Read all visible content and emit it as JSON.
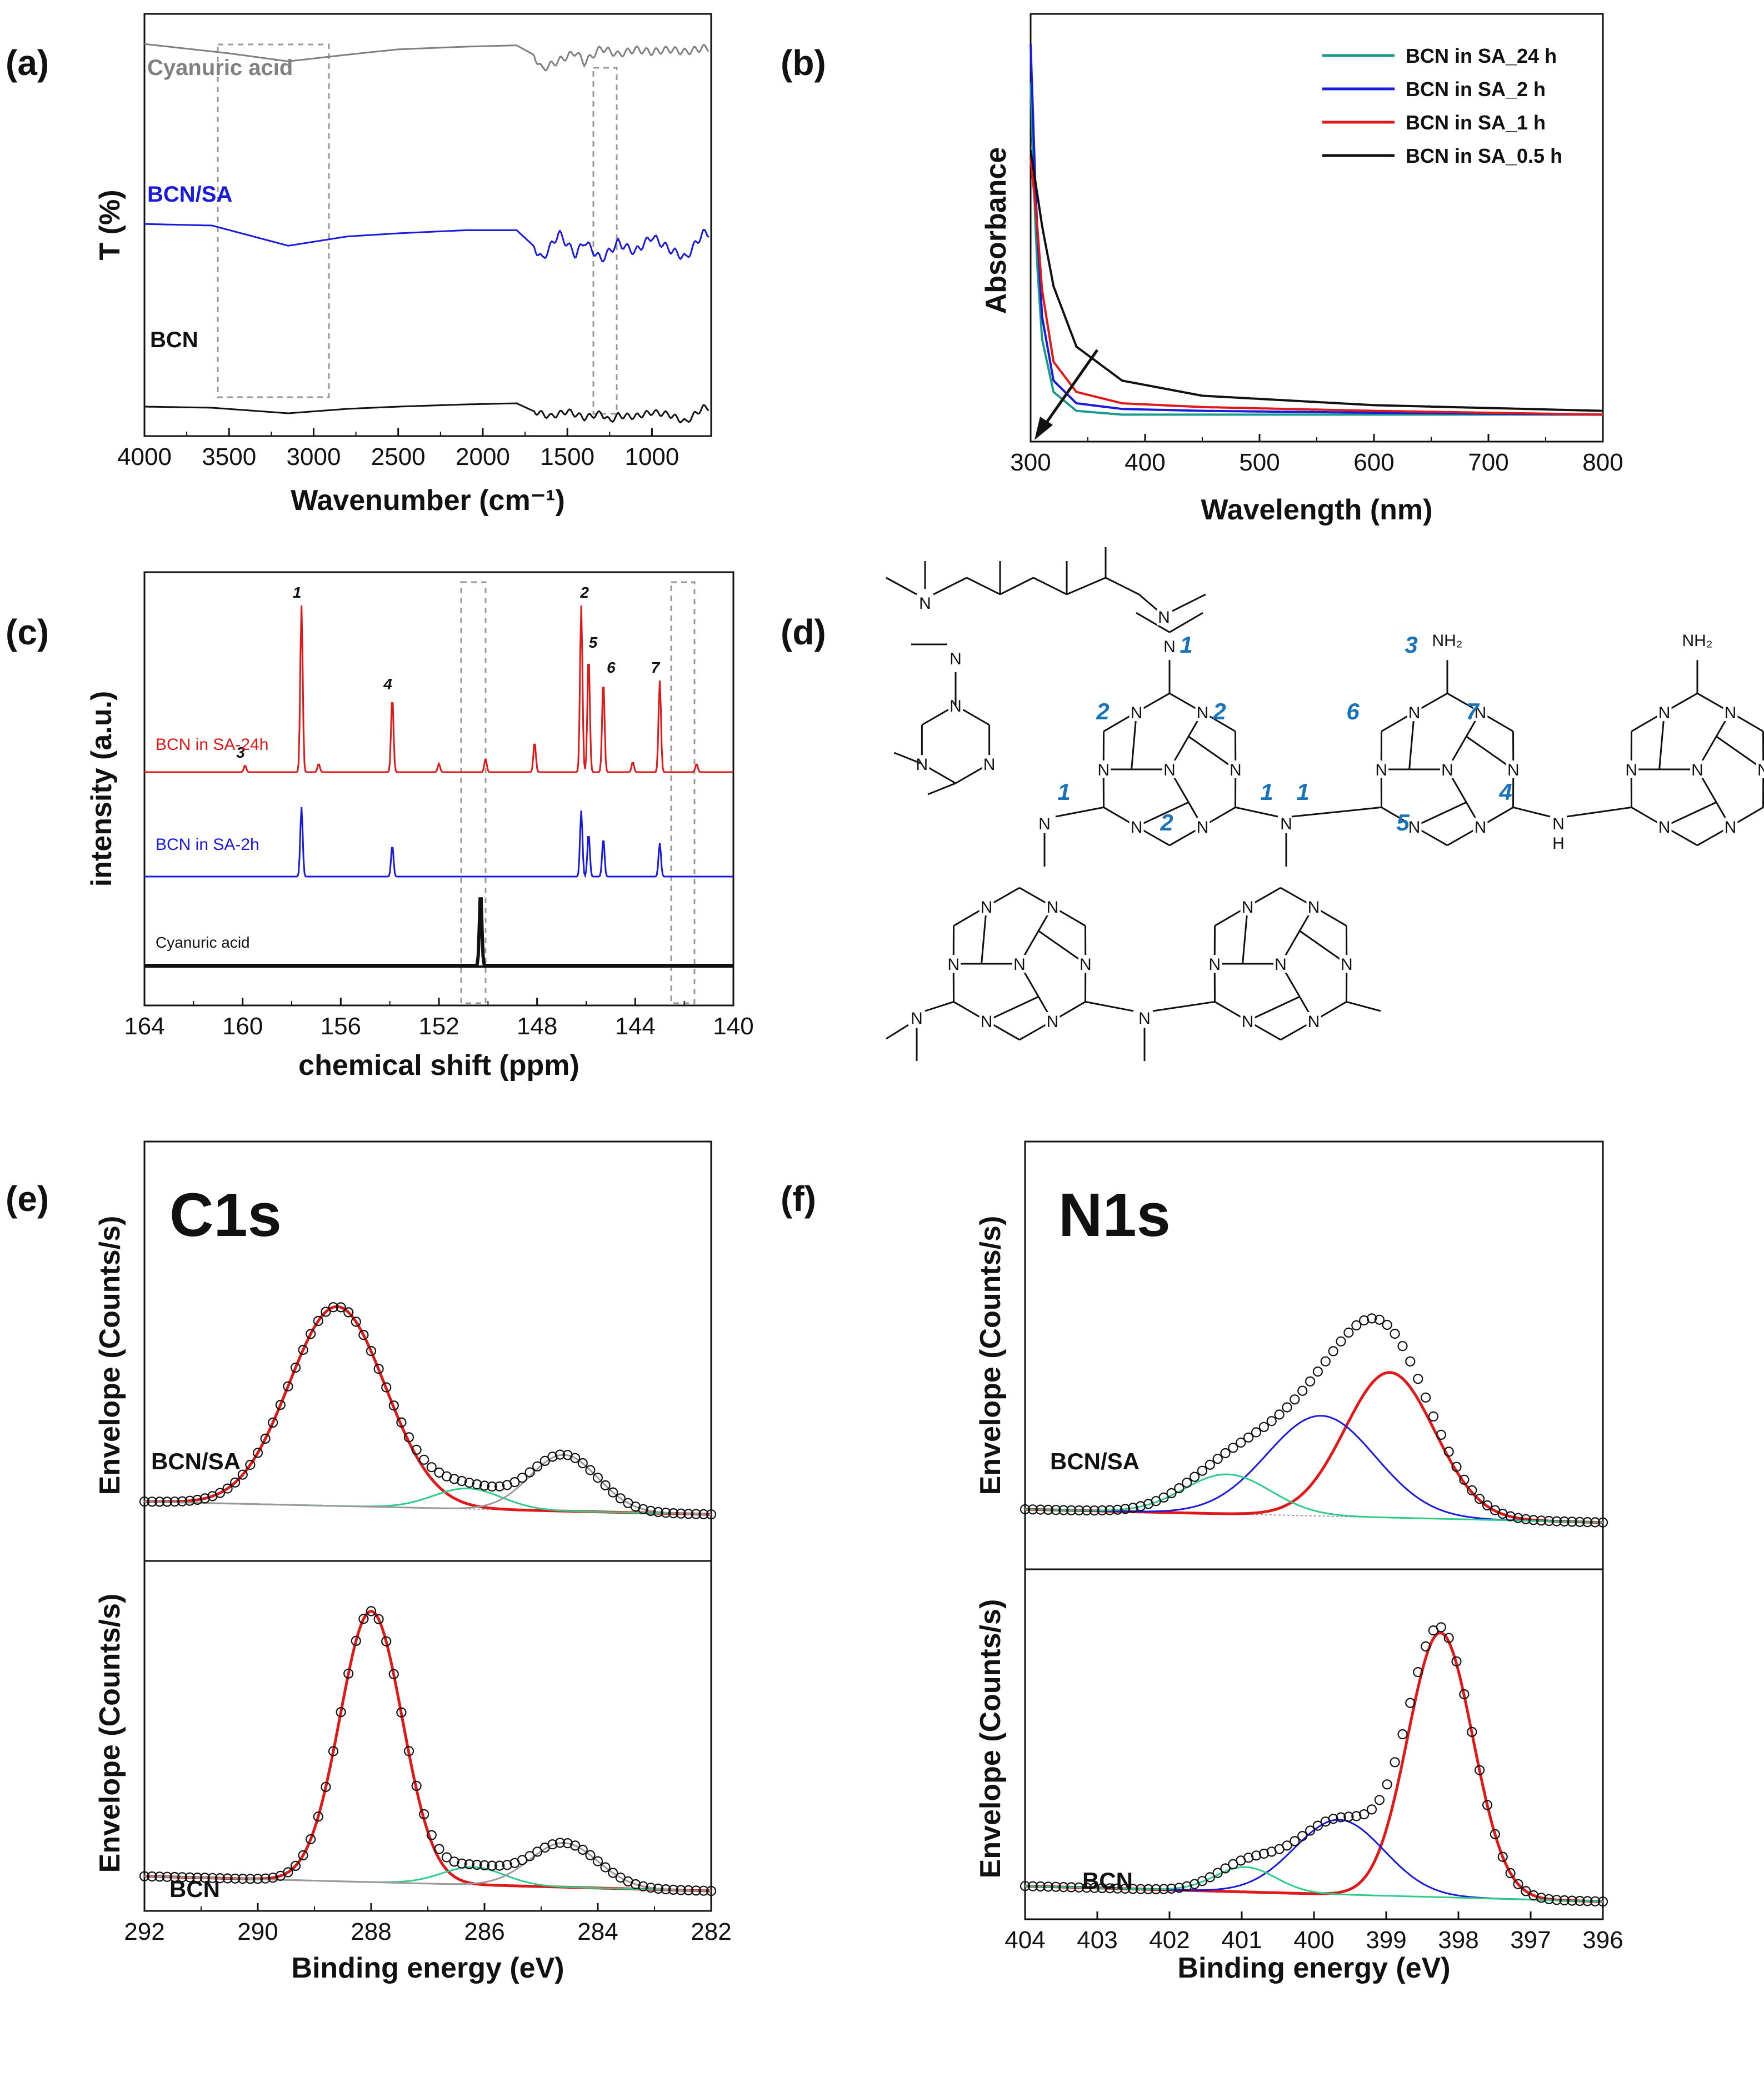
{
  "panels": {
    "a": {
      "label": "(a)"
    },
    "b": {
      "label": "(b)"
    },
    "c": {
      "label": "(c)"
    },
    "d": {
      "label": "(d)"
    },
    "e": {
      "label": "(e)"
    },
    "f": {
      "label": "(f)"
    }
  },
  "chart_data": [
    {
      "id": "a",
      "type": "line",
      "xlabel": "Wavenumber (cm⁻¹)",
      "ylabel": "T (%)",
      "xlim": [
        4000,
        650
      ],
      "xticks": [
        4000,
        3500,
        3000,
        2500,
        2000,
        1500,
        1000
      ],
      "series": [
        {
          "name": "Cyanuric acid",
          "color": "#808080",
          "x": [
            4000,
            3500,
            3150,
            2800,
            2500,
            2100,
            1800,
            1700,
            1650,
            1450,
            1400,
            1300,
            1200,
            1100,
            1000,
            900,
            800,
            700
          ],
          "y": [
            0.92,
            0.85,
            0.79,
            0.84,
            0.88,
            0.9,
            0.91,
            0.84,
            0.73,
            0.86,
            0.78,
            0.89,
            0.84,
            0.88,
            0.86,
            0.88,
            0.86,
            0.89
          ]
        },
        {
          "name": "BCN/SA",
          "color": "#1a1adc",
          "x": [
            4000,
            3600,
            3150,
            2800,
            2500,
            2100,
            1800,
            1700,
            1650,
            1550,
            1450,
            1400,
            1300,
            1200,
            1100,
            1000,
            900,
            800,
            700
          ],
          "y": [
            0.56,
            0.55,
            0.42,
            0.48,
            0.5,
            0.52,
            0.52,
            0.42,
            0.33,
            0.5,
            0.36,
            0.45,
            0.33,
            0.44,
            0.38,
            0.48,
            0.4,
            0.34,
            0.5
          ]
        },
        {
          "name": "BCN",
          "color": "#111111",
          "x": [
            4000,
            3600,
            3150,
            2800,
            2500,
            2100,
            1800,
            1700,
            1600,
            1500,
            1400,
            1300,
            1250,
            1200,
            1100,
            1000,
            900,
            800,
            700
          ],
          "y": [
            0.14,
            0.13,
            0.08,
            0.12,
            0.14,
            0.16,
            0.17,
            0.1,
            0.05,
            0.1,
            0.04,
            0.08,
            0.01,
            0.06,
            0.05,
            0.09,
            0.07,
            0.0,
            0.13
          ]
        }
      ],
      "curve_labels": [
        "Cyanuric acid",
        "BCN/SA",
        "BCN"
      ]
    },
    {
      "id": "b",
      "type": "line",
      "xlabel": "Wavelength (nm)",
      "ylabel": "Absorbance",
      "xlim": [
        300,
        800
      ],
      "xticks": [
        300,
        400,
        500,
        600,
        700,
        800
      ],
      "series": [
        {
          "name": "BCN in SA_24 h",
          "color": "#1a9a8a",
          "x": [
            300,
            305,
            310,
            320,
            340,
            380,
            450,
            600,
            800
          ],
          "y": [
            0.9,
            0.45,
            0.22,
            0.08,
            0.03,
            0.02,
            0.02,
            0.02,
            0.02
          ]
        },
        {
          "name": "BCN in SA_2 h",
          "color": "#1a1adc",
          "x": [
            300,
            305,
            310,
            320,
            340,
            380,
            450,
            600,
            800
          ],
          "y": [
            1.0,
            0.55,
            0.28,
            0.11,
            0.05,
            0.035,
            0.03,
            0.025,
            0.02
          ]
        },
        {
          "name": "BCN in SA_1 h",
          "color": "#e01818",
          "x": [
            300,
            305,
            310,
            320,
            340,
            380,
            450,
            600,
            800
          ],
          "y": [
            0.7,
            0.55,
            0.35,
            0.16,
            0.08,
            0.05,
            0.04,
            0.03,
            0.02
          ]
        },
        {
          "name": "BCN in SA_0.5 h",
          "color": "#111111",
          "x": [
            300,
            305,
            310,
            320,
            340,
            380,
            450,
            600,
            800
          ],
          "y": [
            0.72,
            0.62,
            0.52,
            0.36,
            0.2,
            0.11,
            0.07,
            0.045,
            0.03
          ]
        }
      ],
      "legend": [
        "BCN in SA_24 h",
        "BCN in SA_2 h",
        "BCN in SA_1 h",
        "BCN in SA_0.5 h"
      ]
    },
    {
      "id": "c",
      "type": "line",
      "xlabel": "chemical shift (ppm)",
      "ylabel": "intensity (a.u.)",
      "xlim": [
        164,
        140
      ],
      "xticks": [
        164,
        160,
        156,
        152,
        148,
        144,
        140
      ],
      "series": [
        {
          "name": "BCN in SA-24h",
          "color": "#e01818",
          "peaks": [
            [
              159.9,
              0.04
            ],
            [
              157.6,
              1.0
            ],
            [
              156.9,
              0.05
            ],
            [
              153.9,
              0.45
            ],
            [
              152.0,
              0.05
            ],
            [
              150.1,
              0.08
            ],
            [
              148.1,
              0.18
            ],
            [
              146.2,
              1.0
            ],
            [
              145.9,
              0.7
            ],
            [
              145.3,
              0.55
            ],
            [
              144.1,
              0.06
            ],
            [
              143.0,
              0.55
            ],
            [
              141.5,
              0.05
            ]
          ]
        },
        {
          "name": "BCN in SA-2h",
          "color": "#1a1adc",
          "peaks": [
            [
              157.6,
              1.0
            ],
            [
              153.9,
              0.45
            ],
            [
              146.2,
              0.95
            ],
            [
              145.9,
              0.62
            ],
            [
              145.3,
              0.55
            ],
            [
              143.0,
              0.48
            ]
          ]
        },
        {
          "name": "Cyanuric acid",
          "color": "#111111",
          "peaks": [
            [
              150.3,
              1.0
            ]
          ]
        }
      ],
      "peak_labels": [
        {
          "label": "1",
          "ppm": 157.6
        },
        {
          "label": "2",
          "ppm": 146.2
        },
        {
          "label": "3",
          "ppm": 159.9
        },
        {
          "label": "4",
          "ppm": 153.9
        },
        {
          "label": "5",
          "ppm": 145.9
        },
        {
          "label": "6",
          "ppm": 145.3
        },
        {
          "label": "7",
          "ppm": 143.0
        }
      ],
      "curve_labels": [
        "BCN in SA-24h",
        "BCN in SA-2h",
        "Cyanuric acid"
      ]
    },
    {
      "id": "e",
      "type": "line",
      "title": "C1s",
      "xlabel": "Binding energy (eV)",
      "ylabel": "Envelope (Counts/s)",
      "xlim": [
        292,
        282
      ],
      "xticks": [
        292,
        290,
        288,
        286,
        284,
        282
      ],
      "subplots": [
        {
          "name": "BCN/SA",
          "components": [
            {
              "name": "fit-main",
              "color": "#e01818",
              "center": 288.6,
              "height": 0.78,
              "width": 0.85
            },
            {
              "name": "fit-mid",
              "color": "#2ecc8a",
              "center": 286.3,
              "height": 0.08,
              "width": 0.6
            },
            {
              "name": "fit-low",
              "color": "#9a9a9a",
              "center": 284.6,
              "height": 0.22,
              "width": 0.6
            }
          ]
        },
        {
          "name": "BCN",
          "components": [
            {
              "name": "fit-main",
              "color": "#e01818",
              "center": 288.0,
              "height": 0.92,
              "width": 0.55
            },
            {
              "name": "fit-mid",
              "color": "#2ecc8a",
              "center": 286.2,
              "height": 0.06,
              "width": 0.55
            },
            {
              "name": "fit-low",
              "color": "#9a9a9a",
              "center": 284.6,
              "height": 0.15,
              "width": 0.6
            }
          ]
        }
      ]
    },
    {
      "id": "f",
      "type": "line",
      "title": "N1s",
      "xlabel": "Binding energy (eV)",
      "ylabel": "Envelope (Counts/s)",
      "xlim": [
        404,
        396
      ],
      "xticks": [
        404,
        403,
        402,
        401,
        400,
        399,
        398,
        397,
        396
      ],
      "subplots": [
        {
          "name": "BCN/SA",
          "components": [
            {
              "name": "fit-main",
              "color": "#e01818",
              "center": 398.95,
              "height": 0.55,
              "width": 0.62
            },
            {
              "name": "fit-mid",
              "color": "#1a1adc",
              "center": 399.9,
              "height": 0.38,
              "width": 0.75
            },
            {
              "name": "fit-high",
              "color": "#2ecc8a",
              "center": 401.2,
              "height": 0.15,
              "width": 0.6
            }
          ]
        },
        {
          "name": "BCN",
          "components": [
            {
              "name": "fit-main",
              "color": "#e01818",
              "center": 398.25,
              "height": 0.85,
              "width": 0.45
            },
            {
              "name": "fit-mid",
              "color": "#1a1adc",
              "center": 399.65,
              "height": 0.24,
              "width": 0.62
            },
            {
              "name": "fit-high",
              "color": "#2ecc8a",
              "center": 400.95,
              "height": 0.08,
              "width": 0.42
            }
          ]
        }
      ]
    }
  ],
  "structure": {
    "atoms": {
      "n": "N",
      "h": "H",
      "nh2": "NH₂"
    },
    "site_labels": [
      "1",
      "2",
      "3",
      "4",
      "5",
      "6",
      "7"
    ]
  }
}
